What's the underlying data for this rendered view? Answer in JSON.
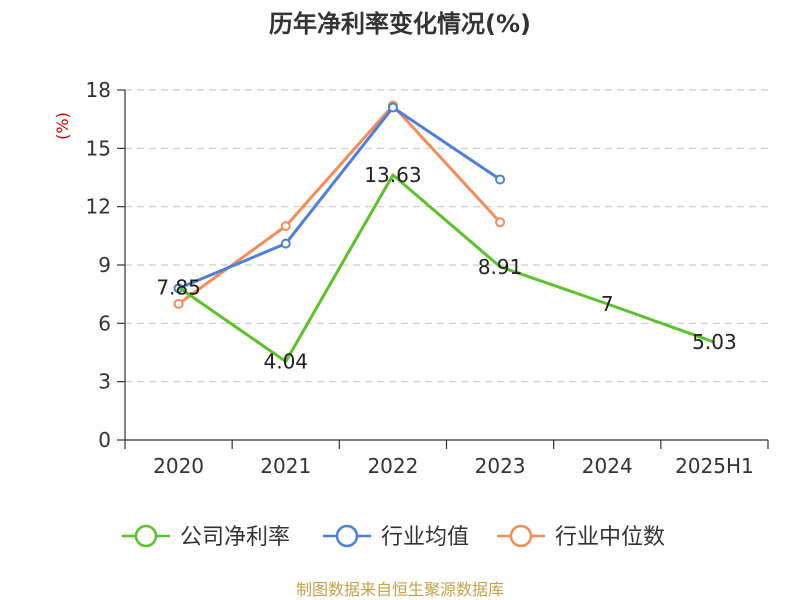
{
  "chart_data": {
    "type": "line",
    "title": "历年净利率变化情况(%)",
    "ylabel": "(%)",
    "categories": [
      "2020",
      "2021",
      "2022",
      "2023",
      "2024",
      "2025H1"
    ],
    "ylim": [
      0,
      18
    ],
    "yticks": [
      0,
      3,
      6,
      9,
      12,
      15,
      18
    ],
    "grid": true,
    "legend_position": "bottom",
    "series": [
      {
        "name": "公司净利率",
        "color": "#5dc12e",
        "values": [
          7.85,
          4.04,
          13.63,
          8.91,
          7,
          5.03
        ],
        "labels": [
          "7.85",
          "4.04",
          "13.63",
          "8.91",
          "7",
          "5.03"
        ]
      },
      {
        "name": "行业均值",
        "color": "#4f7fd8",
        "values": [
          7.8,
          10.1,
          17.1,
          13.4,
          null,
          null
        ]
      },
      {
        "name": "行业中位数",
        "color": "#f58b5a",
        "values": [
          7.0,
          11.0,
          17.2,
          11.2,
          null,
          null
        ]
      }
    ],
    "source": "制图数据来自恒生聚源数据库"
  }
}
